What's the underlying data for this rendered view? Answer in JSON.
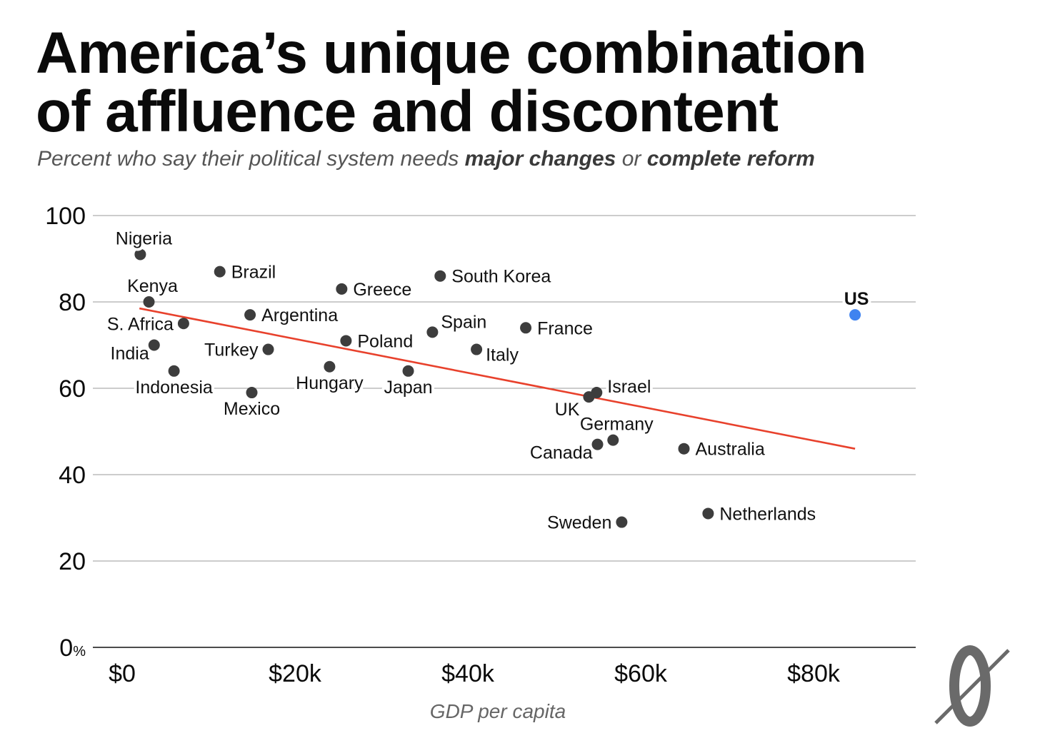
{
  "header": {
    "title_line1": "America’s unique combination",
    "title_line2": "of affluence and discontent",
    "subtitle_pre": "Percent who say their political system needs ",
    "subtitle_b1": "major changes",
    "subtitle_mid": " or ",
    "subtitle_b2": "complete reform"
  },
  "chart_data": {
    "type": "scatter",
    "title": "America’s unique combination of affluence and discontent",
    "subtitle": "Percent who say their political system needs major changes or complete reform",
    "xlabel": "GDP per capita",
    "ylabel": "",
    "xlim": [
      0,
      92000
    ],
    "ylim": [
      0,
      100
    ],
    "x_ticks": [
      {
        "value": 0,
        "label": "$0"
      },
      {
        "value": 20000,
        "label": "$20k"
      },
      {
        "value": 40000,
        "label": "$40k"
      },
      {
        "value": 60000,
        "label": "$60k"
      },
      {
        "value": 80000,
        "label": "$80k"
      }
    ],
    "y_ticks": [
      {
        "value": 0,
        "label": "0",
        "suffix": "%"
      },
      {
        "value": 20,
        "label": "20"
      },
      {
        "value": 40,
        "label": "40"
      },
      {
        "value": 60,
        "label": "60"
      },
      {
        "value": 80,
        "label": "80"
      },
      {
        "value": 100,
        "label": "100"
      }
    ],
    "grid": "horizontal",
    "point_color": "#3d3d3d",
    "highlight_color": "#3f83f0",
    "trend_color": "#e8412c",
    "trend": {
      "x1": 2000,
      "y1": 78.5,
      "x2": 84800,
      "y2": 46
    },
    "points": [
      {
        "name": "Nigeria",
        "x": 2100,
        "y": 91,
        "pos": "above"
      },
      {
        "name": "Brazil",
        "x": 11300,
        "y": 87,
        "pos": "right",
        "big": true
      },
      {
        "name": "Kenya",
        "x": 3100,
        "y": 80,
        "pos": "above"
      },
      {
        "name": "S. Africa",
        "x": 7100,
        "y": 75,
        "pos": "left"
      },
      {
        "name": "India",
        "x": 3700,
        "y": 70,
        "pos": "left-low"
      },
      {
        "name": "Indonesia",
        "x": 6000,
        "y": 64,
        "pos": "below"
      },
      {
        "name": "Argentina",
        "x": 14800,
        "y": 77,
        "pos": "right"
      },
      {
        "name": "Turkey",
        "x": 16900,
        "y": 69,
        "pos": "left"
      },
      {
        "name": "Mexico",
        "x": 15000,
        "y": 59,
        "pos": "below"
      },
      {
        "name": "Greece",
        "x": 25400,
        "y": 83,
        "pos": "right"
      },
      {
        "name": "Poland",
        "x": 25900,
        "y": 71,
        "pos": "right"
      },
      {
        "name": "Hungary",
        "x": 24000,
        "y": 65,
        "pos": "below"
      },
      {
        "name": "South Korea",
        "x": 36800,
        "y": 86,
        "pos": "right"
      },
      {
        "name": "Spain",
        "x": 35900,
        "y": 73,
        "pos": "above-right"
      },
      {
        "name": "Japan",
        "x": 33100,
        "y": 64,
        "pos": "below"
      },
      {
        "name": "Italy",
        "x": 41000,
        "y": 69,
        "pos": "right-low"
      },
      {
        "name": "France",
        "x": 46700,
        "y": 74,
        "pos": "right"
      },
      {
        "name": "Israel",
        "x": 54900,
        "y": 59,
        "pos": "right-high"
      },
      {
        "name": "UK",
        "x": 54000,
        "y": 58,
        "pos": "below-left"
      },
      {
        "name": "Germany",
        "x": 56800,
        "y": 48,
        "pos": "above"
      },
      {
        "name": "Canada",
        "x": 55000,
        "y": 47,
        "pos": "left-low"
      },
      {
        "name": "Australia",
        "x": 65000,
        "y": 46,
        "pos": "right"
      },
      {
        "name": "Sweden",
        "x": 57800,
        "y": 29,
        "pos": "left"
      },
      {
        "name": "Netherlands",
        "x": 67800,
        "y": 31,
        "pos": "right"
      },
      {
        "name": "US",
        "x": 84800,
        "y": 77,
        "pos": "above",
        "highlight": true
      }
    ]
  }
}
